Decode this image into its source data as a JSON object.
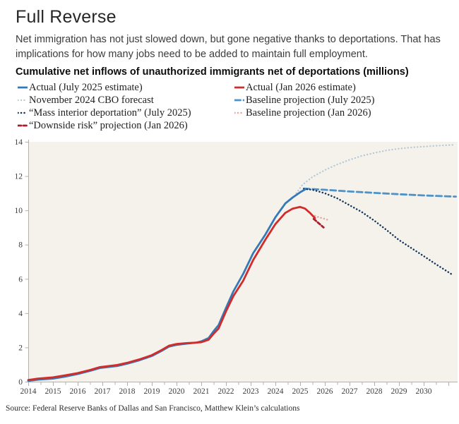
{
  "header": {
    "title": "Full Reverse",
    "subtitle": "Net immigration has not just slowed down, but gone negative thanks to deportations. That has implications for how many jobs need to be added to maintain full employment.",
    "chart_heading": "Cumulative net inflows of unauthorized immigrants net of deportations (millions)"
  },
  "source": "Source: Federal Reserve Banks of Dallas and San Francisco, Matthew Klein’s calculations",
  "colors": {
    "plot_background": "#f5f2ec",
    "axis": "#b5b1a8",
    "tick_text": "#3d3d3d",
    "actual_blue": "#3579b6",
    "baseline_blue": "#4b93c9",
    "actual_red": "#d22b2b",
    "downside_red": "#a8202e",
    "baseline_pink": "#e8a09e",
    "cbo_light": "#b4c8d5",
    "deportation_navy": "#16355c"
  },
  "chart_data": {
    "type": "line",
    "title": "Cumulative net inflows of unauthorized immigrants net of deportations (millions)",
    "xlabel": "",
    "ylabel": "millions",
    "xlim": [
      2014,
      2031.4
    ],
    "ylim": [
      0,
      14
    ],
    "x_ticks": [
      2014,
      2015,
      2016,
      2017,
      2018,
      2019,
      2020,
      2021,
      2022,
      2023,
      2024,
      2025,
      2026,
      2027,
      2028,
      2029,
      2030
    ],
    "y_ticks": [
      0,
      2,
      4,
      6,
      8,
      10,
      12,
      14
    ],
    "grid": false,
    "legend_position": "top-two-columns",
    "legend_columns": [
      [
        "actual_jul2025",
        "cbo_forecast",
        "mass_deportation",
        "downside_risk"
      ],
      [
        "actual_jan2026",
        "baseline_jul2025",
        "baseline_jan2026"
      ]
    ],
    "series": [
      {
        "id": "cbo_forecast",
        "name": "November 2024 CBO forecast",
        "color": "#b4c8d5",
        "style": "dotted",
        "width": 2.3,
        "points": [
          [
            2024.85,
            11.0
          ],
          [
            2025.1,
            11.5
          ],
          [
            2025.5,
            11.95
          ],
          [
            2026,
            12.35
          ],
          [
            2026.5,
            12.68
          ],
          [
            2027,
            12.95
          ],
          [
            2027.5,
            13.18
          ],
          [
            2028,
            13.35
          ],
          [
            2028.5,
            13.5
          ],
          [
            2029,
            13.6
          ],
          [
            2029.5,
            13.67
          ],
          [
            2030,
            13.72
          ],
          [
            2030.5,
            13.77
          ],
          [
            2031.2,
            13.82
          ]
        ]
      },
      {
        "id": "baseline_jul2025",
        "name": "Baseline projection (July 2025)",
        "color": "#4b93c9",
        "style": "dashed",
        "width": 2.8,
        "points": [
          [
            2025.15,
            11.27
          ],
          [
            2026,
            11.2
          ],
          [
            2027,
            11.1
          ],
          [
            2028,
            11.02
          ],
          [
            2029,
            10.94
          ],
          [
            2030,
            10.87
          ],
          [
            2031.3,
            10.8
          ]
        ]
      },
      {
        "id": "mass_deportation",
        "name": "“Mass interior deportation” (July 2025)",
        "color": "#16355c",
        "style": "dotted",
        "width": 2.5,
        "points": [
          [
            2025.15,
            11.25
          ],
          [
            2025.5,
            11.2
          ],
          [
            2026,
            11.0
          ],
          [
            2026.5,
            10.7
          ],
          [
            2027,
            10.3
          ],
          [
            2027.5,
            9.9
          ],
          [
            2028,
            9.4
          ],
          [
            2028.5,
            8.85
          ],
          [
            2029,
            8.27
          ],
          [
            2029.5,
            7.8
          ],
          [
            2030,
            7.33
          ],
          [
            2030.5,
            6.85
          ],
          [
            2031.15,
            6.25
          ]
        ]
      },
      {
        "id": "downside_risk",
        "name": "“Downside risk” projection (Jan 2026)",
        "color": "#a8202e",
        "style": "dashed-short",
        "width": 2.8,
        "points": [
          [
            2025.55,
            9.5
          ],
          [
            2025.75,
            9.25
          ],
          [
            2025.95,
            9.0
          ]
        ]
      },
      {
        "id": "baseline_jan2026",
        "name": "Baseline projection (Jan 2026)",
        "color": "#e8a09e",
        "style": "dotted",
        "width": 2.4,
        "points": [
          [
            2025.6,
            9.68
          ],
          [
            2025.75,
            9.6
          ],
          [
            2025.95,
            9.52
          ],
          [
            2026.1,
            9.45
          ]
        ]
      },
      {
        "id": "actual_jul2025",
        "name": "Actual (July 2025 estimate)",
        "color": "#3579b6",
        "style": "solid",
        "width": 2.8,
        "points": [
          [
            2014,
            0.05
          ],
          [
            2014.4,
            0.12
          ],
          [
            2015,
            0.18
          ],
          [
            2015.5,
            0.3
          ],
          [
            2016,
            0.45
          ],
          [
            2016.5,
            0.63
          ],
          [
            2016.9,
            0.8
          ],
          [
            2017.2,
            0.85
          ],
          [
            2017.6,
            0.92
          ],
          [
            2018,
            1.05
          ],
          [
            2018.5,
            1.25
          ],
          [
            2019,
            1.5
          ],
          [
            2019.4,
            1.8
          ],
          [
            2019.7,
            2.05
          ],
          [
            2020,
            2.15
          ],
          [
            2020.4,
            2.22
          ],
          [
            2020.8,
            2.28
          ],
          [
            2021,
            2.35
          ],
          [
            2021.3,
            2.55
          ],
          [
            2021.5,
            2.95
          ],
          [
            2021.7,
            3.3
          ],
          [
            2022,
            4.3
          ],
          [
            2022.3,
            5.27
          ],
          [
            2022.7,
            6.3
          ],
          [
            2023.1,
            7.5
          ],
          [
            2023.6,
            8.6
          ],
          [
            2024,
            9.6
          ],
          [
            2024.4,
            10.4
          ],
          [
            2024.7,
            10.75
          ],
          [
            2025,
            11.05
          ],
          [
            2025.2,
            11.22
          ]
        ]
      },
      {
        "id": "actual_jan2026",
        "name": "Actual (Jan 2026 estimate)",
        "color": "#d22b2b",
        "style": "solid",
        "width": 2.8,
        "points": [
          [
            2014,
            0.1
          ],
          [
            2014.4,
            0.18
          ],
          [
            2015,
            0.25
          ],
          [
            2015.5,
            0.37
          ],
          [
            2016,
            0.5
          ],
          [
            2016.5,
            0.68
          ],
          [
            2016.9,
            0.85
          ],
          [
            2017.2,
            0.9
          ],
          [
            2017.6,
            0.97
          ],
          [
            2018,
            1.1
          ],
          [
            2018.5,
            1.3
          ],
          [
            2019,
            1.55
          ],
          [
            2019.4,
            1.85
          ],
          [
            2019.7,
            2.1
          ],
          [
            2020,
            2.2
          ],
          [
            2020.4,
            2.25
          ],
          [
            2020.8,
            2.28
          ],
          [
            2021,
            2.3
          ],
          [
            2021.3,
            2.45
          ],
          [
            2021.5,
            2.8
          ],
          [
            2021.7,
            3.1
          ],
          [
            2022,
            4.1
          ],
          [
            2022.3,
            5.0
          ],
          [
            2022.7,
            5.9
          ],
          [
            2023.1,
            7.1
          ],
          [
            2023.6,
            8.3
          ],
          [
            2024,
            9.2
          ],
          [
            2024.4,
            9.85
          ],
          [
            2024.7,
            10.1
          ],
          [
            2025,
            10.2
          ],
          [
            2025.2,
            10.1
          ],
          [
            2025.4,
            9.85
          ],
          [
            2025.6,
            9.55
          ]
        ]
      }
    ]
  }
}
